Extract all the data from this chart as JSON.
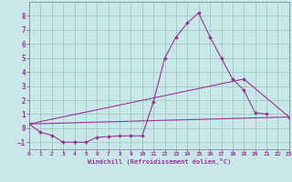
{
  "xlabel": "Windchill (Refroidissement éolien,°C)",
  "background_color": "#c8e8e8",
  "grid_color": "#a0c8c0",
  "line_color": "#993399",
  "xlim": [
    0,
    23
  ],
  "ylim": [
    -1.5,
    9.0
  ],
  "yticks": [
    -1,
    0,
    1,
    2,
    3,
    4,
    5,
    6,
    7,
    8
  ],
  "xticks": [
    0,
    1,
    2,
    3,
    4,
    5,
    6,
    7,
    8,
    9,
    10,
    11,
    12,
    13,
    14,
    15,
    16,
    17,
    18,
    19,
    20,
    21,
    22,
    23
  ],
  "line1_x": [
    0,
    1,
    2,
    3,
    4,
    5,
    6,
    7,
    8,
    9,
    10,
    11,
    12,
    13,
    14,
    15,
    16,
    17,
    18,
    19,
    20,
    21
  ],
  "line1_y": [
    0.3,
    -0.3,
    -0.5,
    -1.0,
    -1.0,
    -1.0,
    -0.65,
    -0.6,
    -0.55,
    -0.55,
    -0.55,
    1.9,
    5.0,
    6.5,
    7.5,
    8.2,
    6.5,
    5.0,
    3.5,
    2.7,
    1.1,
    1.0
  ],
  "line2_x": [
    0,
    19,
    23
  ],
  "line2_y": [
    0.3,
    3.5,
    0.8
  ],
  "line3_x": [
    0,
    23
  ],
  "line3_y": [
    0.3,
    0.8
  ]
}
